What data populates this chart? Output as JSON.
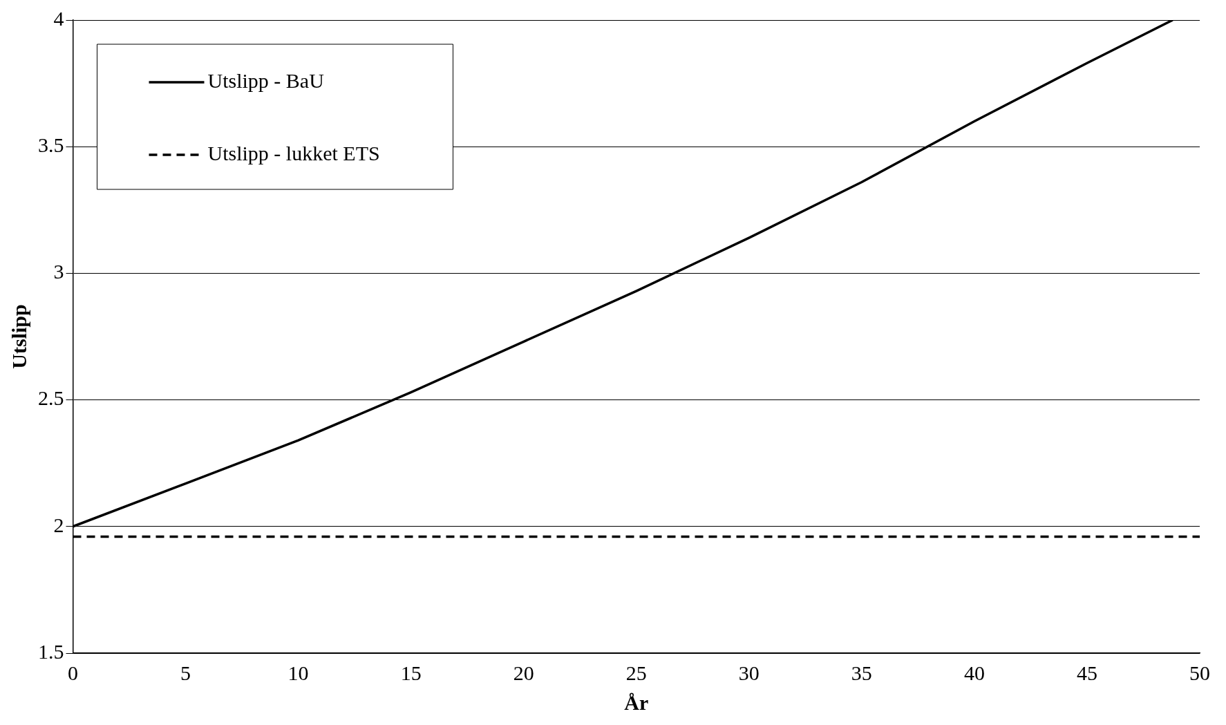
{
  "chart_data": {
    "type": "line",
    "xlabel": "År",
    "ylabel": "Utslipp",
    "xlim": [
      0,
      50
    ],
    "xticks": [
      0,
      5,
      10,
      15,
      20,
      25,
      30,
      35,
      40,
      45,
      50
    ],
    "ylim": [
      1.5,
      4
    ],
    "yticks": [
      1.5,
      2,
      2.5,
      3,
      3.5,
      4
    ],
    "grid": "y",
    "legend": "top left",
    "marker": "none",
    "series": [
      {
        "name": "Utslipp - BaU",
        "color": "#000000",
        "line_style": "solid",
        "x": [
          0,
          5,
          10,
          15,
          20,
          25,
          30,
          35,
          40,
          45,
          48.8
        ],
        "values": [
          2.0,
          2.17,
          2.34,
          2.53,
          2.73,
          2.93,
          3.14,
          3.36,
          3.6,
          3.83,
          4.0
        ]
      },
      {
        "name": "Utslipp - lukket ETS",
        "color": "#000000",
        "line_style": "dashed",
        "x": [
          0,
          50
        ],
        "values": [
          1.96,
          1.96
        ]
      }
    ]
  }
}
